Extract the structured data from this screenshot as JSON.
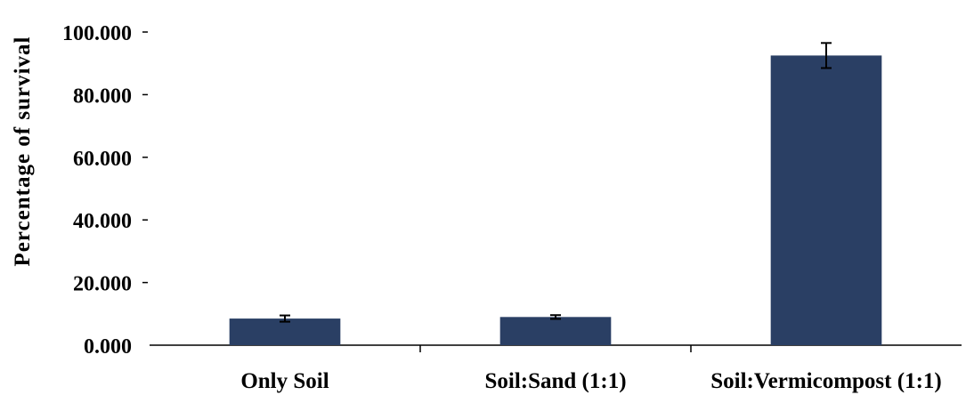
{
  "chart_data": {
    "type": "bar",
    "categories": [
      "Only Soil",
      "Soil:Sand (1:1)",
      "Soil:Vermicompost (1:1)"
    ],
    "values": [
      8.5,
      9.0,
      92.5
    ],
    "errors": [
      1.0,
      0.6,
      4.0
    ],
    "ylabel": "Percentage of survival",
    "xlabel": "",
    "ylim": [
      0,
      100
    ],
    "yticks": [
      "0.000",
      "20.000",
      "40.000",
      "60.000",
      "80.000",
      "100.000"
    ],
    "bar_color": "#2a3f64",
    "grid": false
  }
}
